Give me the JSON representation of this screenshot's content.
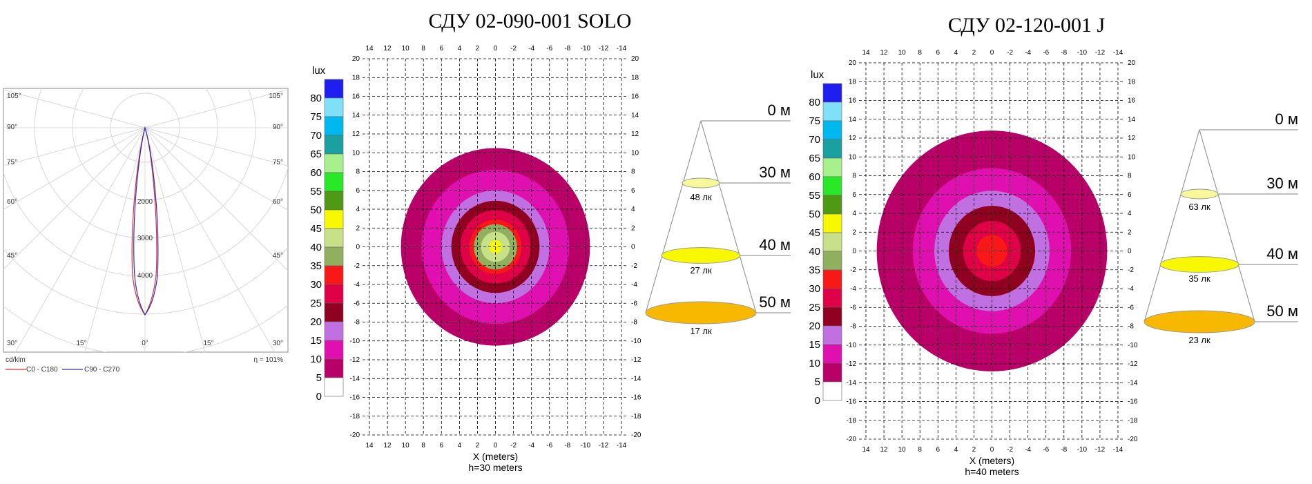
{
  "polar": {
    "angle_labels_left": [
      "105°",
      "90°",
      "75°",
      "60°",
      "45°",
      "30°"
    ],
    "angle_labels_right": [
      "105°",
      "90°",
      "75°",
      "60°",
      "45°",
      "30°"
    ],
    "angle_labels_bottom": [
      "30°",
      "15°",
      "0°",
      "15°",
      "30°"
    ],
    "radial_values": [
      "2000",
      "3000",
      "4000"
    ],
    "unit": "cd/klm",
    "efficiency": "η = 101%",
    "legend": [
      {
        "name": "C0 - C180",
        "color": "#e03030"
      },
      {
        "name": "C90 - C270",
        "color": "#3030c0"
      }
    ]
  },
  "scale": {
    "unit": "lux",
    "levels": [
      {
        "value": "80",
        "color": "#1e1ef0"
      },
      {
        "value": "75",
        "color": "#80e0f8"
      },
      {
        "value": "70",
        "color": "#00b8f0"
      },
      {
        "value": "65",
        "color": "#1aa0a0"
      },
      {
        "value": "60",
        "color": "#a8f08c"
      },
      {
        "value": "55",
        "color": "#28e828"
      },
      {
        "value": "50",
        "color": "#4e9a14"
      },
      {
        "value": "45",
        "color": "#f8f800"
      },
      {
        "value": "40",
        "color": "#c8e088"
      },
      {
        "value": "35",
        "color": "#90b060"
      },
      {
        "value": "30",
        "color": "#f81818"
      },
      {
        "value": "25",
        "color": "#e00048"
      },
      {
        "value": "20",
        "color": "#900020"
      },
      {
        "value": "15",
        "color": "#c070e0"
      },
      {
        "value": "10",
        "color": "#e010b0"
      },
      {
        "value": "5",
        "color": "#b80068"
      },
      {
        "value": "0",
        "color": "#ffffff"
      }
    ]
  },
  "chart_data": [
    {
      "type": "heatmap",
      "title": "СДУ 02-090-001 SOLO",
      "xlabel": "X (meters)",
      "height_label": "h=30 meters",
      "x_ticks": [
        "14",
        "12",
        "10",
        "8",
        "6",
        "4",
        "2",
        "0",
        "-2",
        "-4",
        "-6",
        "-8",
        "-10",
        "-12",
        "-14"
      ],
      "y_ticks": [
        "20",
        "18",
        "16",
        "14",
        "12",
        "10",
        "8",
        "6",
        "4",
        "2",
        "0",
        "-2",
        "-4",
        "-6",
        "-8",
        "-10",
        "-12",
        "-14",
        "-16",
        "-18",
        "-20"
      ],
      "xlim": [
        14,
        -14
      ],
      "ylim": [
        -20,
        20
      ],
      "isolux_radii_m": [
        {
          "lux": 5,
          "r": 10.5
        },
        {
          "lux": 10,
          "r": 8.2
        },
        {
          "lux": 15,
          "r": 6.0
        },
        {
          "lux": 20,
          "r": 4.9
        },
        {
          "lux": 25,
          "r": 3.9
        },
        {
          "lux": 30,
          "r": 2.9
        },
        {
          "lux": 35,
          "r": 2.4
        },
        {
          "lux": 40,
          "r": 1.6
        },
        {
          "lux": 45,
          "r": 0.7
        }
      ],
      "cone": {
        "heights": [
          "0 м",
          "30 м",
          "40 м",
          "50 м"
        ],
        "illuminance": [
          "48 лк",
          "27 лк",
          "17 лк"
        ],
        "colors": [
          "#f8f89a",
          "#f8f800",
          "#f8b800"
        ]
      }
    },
    {
      "type": "heatmap",
      "title": "СДУ 02-120-001 J",
      "xlabel": "X (meters)",
      "height_label": "h=40 meters",
      "x_ticks": [
        "14",
        "12",
        "10",
        "8",
        "6",
        "4",
        "2",
        "0",
        "-2",
        "-4",
        "-6",
        "-8",
        "-10",
        "-12",
        "-14"
      ],
      "y_ticks": [
        "20",
        "18",
        "16",
        "14",
        "12",
        "10",
        "8",
        "6",
        "4",
        "2",
        "0",
        "-2",
        "-4",
        "-6",
        "-8",
        "-10",
        "-12",
        "-14",
        "-16",
        "-18",
        "-20"
      ],
      "xlim": [
        14,
        -14
      ],
      "ylim": [
        -20,
        20
      ],
      "isolux_radii_m": [
        {
          "lux": 5,
          "r": 12.8
        },
        {
          "lux": 10,
          "r": 8.8
        },
        {
          "lux": 15,
          "r": 6.4
        },
        {
          "lux": 20,
          "r": 4.8
        },
        {
          "lux": 25,
          "r": 3.2
        },
        {
          "lux": 30,
          "r": 1.7
        }
      ],
      "cone": {
        "heights": [
          "0 м",
          "30 м",
          "40 м",
          "50 м"
        ],
        "illuminance": [
          "63 лк",
          "35 лк",
          "23 лк"
        ],
        "colors": [
          "#f8f89a",
          "#f8f800",
          "#f8b800"
        ]
      }
    }
  ]
}
